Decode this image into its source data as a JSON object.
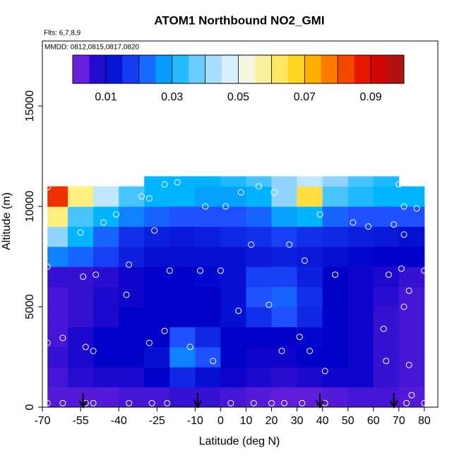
{
  "chart_data": {
    "type": "heatmap",
    "title": "ATOM1 Northbound NO2_GMI",
    "annotations": [
      "Flts: 6,7,8,9",
      "MMDD: 0812,0815,0817,0820"
    ],
    "x_label": "Latitude (deg N)",
    "y_label": "Altitude (m)",
    "xlim": [
      -70,
      85.3
    ],
    "ylim": [
      0,
      18240
    ],
    "xticks": [
      -70,
      -55,
      -40,
      -25,
      -10,
      0,
      10,
      20,
      30,
      40,
      50,
      60,
      70,
      80
    ],
    "yticks": [
      0,
      5000,
      10000,
      15000
    ],
    "grid": false,
    "x_edges": [
      -68,
      -60,
      -50,
      -40,
      -30,
      -20,
      -10,
      0,
      10,
      20,
      30,
      40,
      50,
      60,
      70,
      80
    ],
    "y_edges": [
      0,
      1000,
      2000,
      3000,
      4000,
      5000,
      6000,
      7000,
      8000,
      9000,
      10000,
      11000,
      11500
    ],
    "z": [
      [
        0.004,
        0.004,
        0.004,
        0.005,
        0.005,
        0.006,
        0.006,
        0.005,
        0.004,
        0.003,
        0.003,
        0.004,
        0.005,
        0.005,
        0.004
      ],
      [
        0.005,
        0.007,
        0.008,
        0.008,
        0.01,
        0.015,
        0.012,
        0.009,
        0.008,
        0.007,
        0.008,
        0.009,
        0.009,
        0.006,
        0.005
      ],
      [
        0.006,
        0.008,
        0.01,
        0.01,
        0.012,
        0.025,
        0.02,
        0.01,
        0.009,
        0.009,
        0.01,
        0.01,
        0.009,
        0.006,
        0.005
      ],
      [
        0.005,
        0.008,
        0.01,
        0.01,
        0.01,
        0.02,
        0.015,
        0.01,
        0.01,
        0.01,
        0.011,
        0.01,
        0.009,
        0.006,
        0.005
      ],
      [
        0.005,
        0.006,
        0.008,
        0.01,
        0.01,
        0.01,
        0.01,
        0.012,
        0.016,
        0.02,
        0.015,
        0.01,
        0.009,
        0.006,
        0.005
      ],
      [
        0.005,
        0.006,
        0.008,
        0.009,
        0.01,
        0.01,
        0.01,
        0.012,
        0.02,
        0.022,
        0.016,
        0.01,
        0.009,
        0.007,
        0.005
      ],
      [
        0.006,
        0.006,
        0.007,
        0.009,
        0.01,
        0.01,
        0.011,
        0.012,
        0.018,
        0.018,
        0.014,
        0.01,
        0.009,
        0.008,
        0.006
      ],
      [
        0.025,
        0.022,
        0.018,
        0.014,
        0.012,
        0.012,
        0.012,
        0.012,
        0.013,
        0.014,
        0.013,
        0.012,
        0.011,
        0.01,
        0.01
      ],
      [
        0.04,
        0.03,
        0.022,
        0.016,
        0.014,
        0.013,
        0.014,
        0.015,
        0.016,
        0.018,
        0.016,
        0.015,
        0.014,
        0.013,
        0.012
      ],
      [
        0.06,
        0.035,
        0.03,
        0.025,
        0.022,
        0.02,
        0.02,
        0.02,
        0.022,
        0.028,
        0.03,
        0.022,
        0.02,
        0.02,
        0.02
      ],
      [
        0.085,
        0.06,
        0.045,
        0.035,
        0.03,
        0.03,
        0.028,
        0.028,
        0.03,
        0.04,
        0.065,
        0.035,
        0.032,
        0.03,
        0.03
      ],
      [
        null,
        null,
        null,
        null,
        0.03,
        0.03,
        0.03,
        0.032,
        0.035,
        0.04,
        0.045,
        0.04,
        0.035,
        0.032,
        null
      ]
    ],
    "colorbar": {
      "clim": [
        0,
        0.1
      ],
      "ticks": [
        0.01,
        0.03,
        0.05,
        0.07,
        0.09
      ],
      "levels": [
        0,
        0.01,
        0.02,
        0.03,
        0.04,
        0.05,
        0.06,
        0.07,
        0.08,
        0.09,
        0.1
      ],
      "colors": [
        "#8a2be2",
        "#0000c8",
        "#1e50ff",
        "#00b4ff",
        "#90d4ff",
        "#f0f8ff",
        "#fff080",
        "#ffcc00",
        "#ff6000",
        "#e00000",
        "#a01818"
      ]
    },
    "observations": {
      "color": "#ffffff",
      "x": [
        -68,
        -68,
        -68,
        -68,
        -62,
        -62,
        -55,
        -54,
        -53,
        -53,
        -50,
        -50,
        -49,
        -46,
        -41,
        -37,
        -36,
        -36,
        -31,
        -28,
        -28,
        -27,
        -26,
        -22,
        -22,
        -21,
        -20,
        -17,
        -12,
        -8,
        -6,
        -3,
        0,
        2,
        4,
        7,
        8,
        12,
        13,
        15,
        19,
        20,
        21,
        24,
        25,
        27,
        31,
        32,
        33,
        35,
        39,
        41,
        41,
        45,
        52,
        58,
        64,
        65,
        66,
        68,
        70,
        71,
        72,
        72,
        72,
        73,
        74,
        74,
        75,
        77,
        80,
        80
      ],
      "y": [
        10950,
        7000,
        3200,
        200,
        3450,
        200,
        8700,
        6500,
        3000,
        200,
        2800,
        200,
        6600,
        9200,
        9600,
        5600,
        7100,
        200,
        10500,
        10400,
        3200,
        200,
        8800,
        11100,
        3800,
        200,
        6800,
        11200,
        3000,
        6800,
        10000,
        2300,
        6800,
        10000,
        200,
        4800,
        10700,
        8100,
        200,
        11000,
        5100,
        200,
        10700,
        2800,
        200,
        8100,
        3500,
        200,
        7300,
        2800,
        9600,
        1800,
        200,
        6600,
        9200,
        9000,
        3900,
        2300,
        6600,
        9100,
        11100,
        6900,
        8600,
        5000,
        10000,
        200,
        5800,
        2100,
        600,
        9900,
        6800,
        200
      ]
    },
    "arrows": [
      -54,
      -9,
      39,
      68
    ]
  }
}
